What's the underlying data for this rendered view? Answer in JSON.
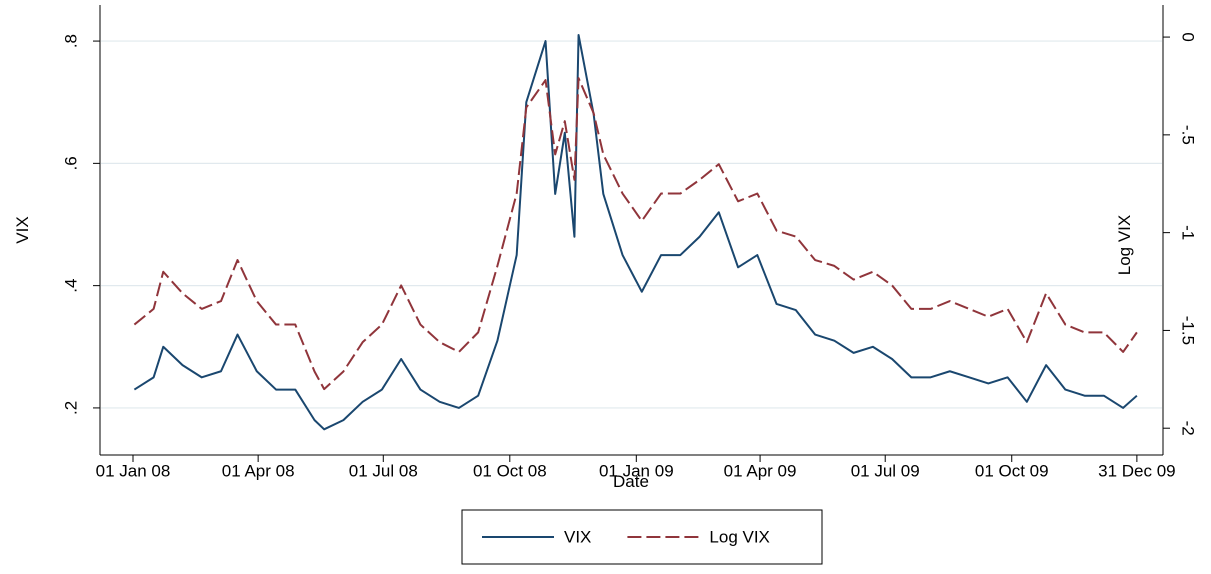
{
  "chart_data": {
    "type": "line",
    "x_label": "Date",
    "y_label": "VIX",
    "y2_label": "Log VIX",
    "x": [
      "2008-01-02",
      "2008-01-16",
      "2008-01-23",
      "2008-02-06",
      "2008-02-20",
      "2008-03-05",
      "2008-03-17",
      "2008-03-31",
      "2008-04-14",
      "2008-04-28",
      "2008-05-12",
      "2008-05-19",
      "2008-06-02",
      "2008-06-16",
      "2008-06-30",
      "2008-07-14",
      "2008-07-28",
      "2008-08-11",
      "2008-08-25",
      "2008-09-08",
      "2008-09-22",
      "2008-10-06",
      "2008-10-13",
      "2008-10-27",
      "2008-11-03",
      "2008-11-10",
      "2008-11-17",
      "2008-11-20",
      "2008-12-01",
      "2008-12-08",
      "2008-12-22",
      "2009-01-05",
      "2009-01-19",
      "2009-02-02",
      "2009-02-16",
      "2009-03-02",
      "2009-03-16",
      "2009-03-30",
      "2009-04-13",
      "2009-04-27",
      "2009-05-11",
      "2009-05-25",
      "2009-06-08",
      "2009-06-22",
      "2009-07-06",
      "2009-07-20",
      "2009-08-03",
      "2009-08-17",
      "2009-08-31",
      "2009-09-14",
      "2009-09-28",
      "2009-10-12",
      "2009-10-26",
      "2009-11-09",
      "2009-11-23",
      "2009-12-07",
      "2009-12-21",
      "2009-12-31"
    ],
    "series": [
      {
        "name": "VIX",
        "color": "#1a476f",
        "dash": false,
        "axis": "y",
        "values": [
          0.23,
          0.25,
          0.3,
          0.27,
          0.25,
          0.26,
          0.32,
          0.26,
          0.23,
          0.23,
          0.18,
          0.165,
          0.18,
          0.21,
          0.23,
          0.28,
          0.23,
          0.21,
          0.2,
          0.22,
          0.31,
          0.45,
          0.7,
          0.8,
          0.55,
          0.65,
          0.48,
          0.81,
          0.68,
          0.55,
          0.45,
          0.39,
          0.45,
          0.45,
          0.48,
          0.52,
          0.43,
          0.45,
          0.37,
          0.36,
          0.32,
          0.31,
          0.29,
          0.3,
          0.28,
          0.25,
          0.25,
          0.26,
          0.25,
          0.24,
          0.25,
          0.21,
          0.27,
          0.23,
          0.22,
          0.22,
          0.2,
          0.22
        ]
      },
      {
        "name": "Log VIX",
        "color": "#90353b",
        "dash": true,
        "axis": "y2",
        "values": [
          -1.47,
          -1.39,
          -1.2,
          -1.31,
          -1.39,
          -1.35,
          -1.14,
          -1.35,
          -1.47,
          -1.47,
          -1.71,
          -1.8,
          -1.71,
          -1.56,
          -1.47,
          -1.27,
          -1.47,
          -1.56,
          -1.61,
          -1.51,
          -1.17,
          -0.8,
          -0.36,
          -0.22,
          -0.6,
          -0.43,
          -0.73,
          -0.21,
          -0.39,
          -0.6,
          -0.8,
          -0.94,
          -0.8,
          -0.8,
          -0.73,
          -0.65,
          -0.84,
          -0.8,
          -0.99,
          -1.02,
          -1.14,
          -1.17,
          -1.24,
          -1.2,
          -1.27,
          -1.39,
          -1.39,
          -1.35,
          -1.39,
          -1.43,
          -1.39,
          -1.56,
          -1.31,
          -1.47,
          -1.51,
          -1.51,
          -1.61,
          -1.51
        ]
      }
    ],
    "xlim": [
      "2007-12-08",
      "2010-01-19"
    ],
    "xticks": [
      {
        "value": "2008-01-01",
        "label": "01 Jan 08"
      },
      {
        "value": "2008-04-01",
        "label": "01 Apr 08"
      },
      {
        "value": "2008-07-01",
        "label": "01 Jul 08"
      },
      {
        "value": "2008-10-01",
        "label": "01 Oct 08"
      },
      {
        "value": "2009-01-01",
        "label": "01 Jan 09"
      },
      {
        "value": "2009-04-01",
        "label": "01 Apr 09"
      },
      {
        "value": "2009-07-01",
        "label": "01 Jul 09"
      },
      {
        "value": "2009-10-01",
        "label": "01 Oct 09"
      },
      {
        "value": "2009-12-31",
        "label": "31 Dec 09"
      }
    ],
    "ylim": [
      0.123,
      0.859
    ],
    "yticks": [
      {
        "value": 0.2,
        "label": ".2"
      },
      {
        "value": 0.4,
        "label": ".4"
      },
      {
        "value": 0.6,
        "label": ".6"
      },
      {
        "value": 0.8,
        "label": ".8"
      }
    ],
    "y2lim": [
      -2.137,
      0.164
    ],
    "y2ticks": [
      {
        "value": -2,
        "label": "-2"
      },
      {
        "value": -1.5,
        "label": "-1.5"
      },
      {
        "value": -1,
        "label": "-1"
      },
      {
        "value": -0.5,
        "label": "-.5"
      },
      0
    ],
    "grid": true,
    "legend": "bottom"
  }
}
